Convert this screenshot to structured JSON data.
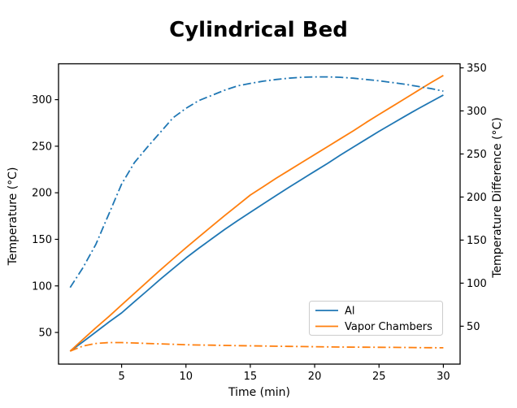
{
  "figure": {
    "title": "Cylindrical Bed",
    "background_color": "#ffffff"
  },
  "chart_data": {
    "type": "line",
    "title": "Cylindrical Bed",
    "xlabel": "Time (min)",
    "ylabel_left": "Temperature (°C)",
    "ylabel_right": "Temperature Difference (°C)",
    "xlim": [
      0.1,
      31.3
    ],
    "ylim_left": [
      16,
      338.5
    ],
    "ylim_right": [
      6,
      354.7
    ],
    "x_ticks": [
      5,
      10,
      15,
      20,
      25,
      30
    ],
    "y_ticks_left": [
      50,
      100,
      150,
      200,
      250,
      300
    ],
    "y_ticks_right": [
      50,
      100,
      150,
      200,
      250,
      300,
      350
    ],
    "grid": false,
    "legend": {
      "position": "lower-right-inside",
      "entries": [
        {
          "label": "Al",
          "color": "#1f77b4",
          "style": "solid"
        },
        {
          "label": "Vapor Chambers",
          "color": "#ff7f0e",
          "style": "solid"
        }
      ]
    },
    "x": [
      1,
      2,
      3,
      4,
      5,
      6,
      7,
      8,
      9,
      10,
      11,
      12,
      13,
      14,
      15,
      16,
      17,
      18,
      19,
      20,
      21,
      22,
      23,
      24,
      25,
      26,
      27,
      28,
      29,
      30
    ],
    "series": [
      {
        "name": "Al",
        "axis": "left",
        "style": "solid",
        "color": "#1f77b4",
        "values": [
          30,
          40,
          50.5,
          61,
          71,
          83,
          95,
          107,
          118.5,
          130,
          140.5,
          150.5,
          160.5,
          170,
          179,
          188,
          197,
          205.8,
          214.5,
          223,
          231.5,
          240.5,
          249,
          257.5,
          266,
          274,
          282,
          290,
          297.5,
          305
        ]
      },
      {
        "name": "Vapor Chambers",
        "axis": "left",
        "style": "solid",
        "color": "#ff7f0e",
        "values": [
          30,
          42.5,
          55,
          67,
          79.5,
          92,
          104.5,
          117,
          129,
          141,
          152.5,
          164,
          175.5,
          186.5,
          197.5,
          206.5,
          215.5,
          224,
          232.5,
          241,
          249.5,
          258,
          266.5,
          275.5,
          284,
          292.5,
          301,
          309.5,
          318,
          326
        ]
      },
      {
        "name": "Al temperature difference",
        "axis": "right",
        "style": "dashdot",
        "color": "#1f77b4",
        "values": [
          95,
          118,
          145,
          180,
          215,
          240,
          258,
          275,
          292,
          303,
          312,
          318,
          324,
          329,
          332,
          334.5,
          336.5,
          338,
          339,
          339.5,
          339.5,
          339,
          338,
          336.5,
          335,
          333,
          331,
          328.5,
          326,
          323
        ]
      },
      {
        "name": "Vapor Chambers temperature difference",
        "axis": "right",
        "style": "dashdot",
        "color": "#ff7f0e",
        "values": [
          21,
          27,
          30,
          31,
          31,
          30.5,
          30,
          29.5,
          29,
          28.5,
          28.2,
          28,
          27.7,
          27.4,
          27.2,
          27,
          26.8,
          26.6,
          26.4,
          26.2,
          26,
          25.8,
          25.7,
          25.6,
          25.5,
          25.4,
          25.3,
          25.2,
          25.1,
          25
        ]
      }
    ],
    "colors": {
      "al": "#1f77b4",
      "vapor_chambers": "#ff7f0e",
      "spine": "#000000",
      "legend_border": "#cccccc",
      "text": "#000000"
    }
  }
}
